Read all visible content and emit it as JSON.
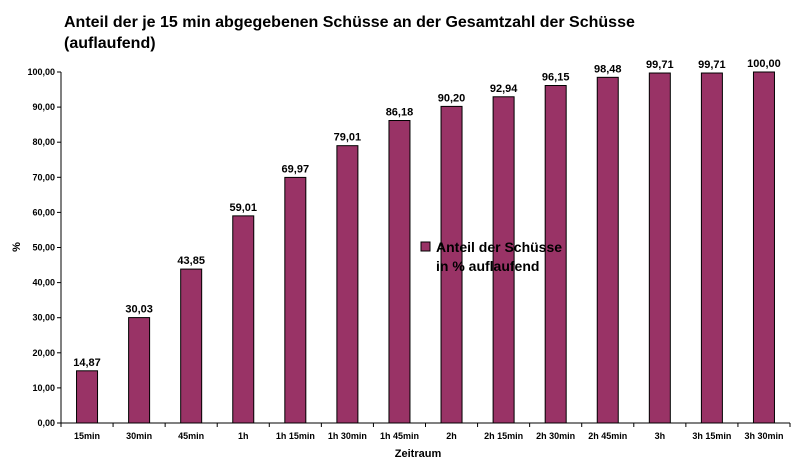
{
  "chart_data": {
    "type": "bar",
    "title_lines": [
      "Anteil der je 15 min abgegebenen Schüsse an der Gesamtzahl der Schüsse",
      "(auflaufend)"
    ],
    "xlabel": "Zeitraum",
    "ylabel": "%",
    "ylim": [
      0,
      100
    ],
    "yticks": [
      "0,00",
      "10,00",
      "20,00",
      "30,00",
      "40,00",
      "50,00",
      "60,00",
      "70,00",
      "80,00",
      "90,00",
      "100,00"
    ],
    "grid": false,
    "legend_position": "center-right",
    "categories": [
      "15min",
      "30min",
      "45min",
      "1h",
      "1h 15min",
      "1h 30min",
      "1h 45min",
      "2h",
      "2h 15min",
      "2h 30min",
      "2h 45min",
      "3h",
      "3h 15min",
      "3h 30min"
    ],
    "series": [
      {
        "name_lines": [
          "Anteil der Schüsse",
          "in % auflaufend"
        ],
        "color": "#993366",
        "values": [
          14.87,
          30.03,
          43.85,
          59.01,
          69.97,
          79.01,
          86.18,
          90.2,
          92.94,
          96.15,
          98.48,
          99.71,
          99.71,
          100.0
        ],
        "labels": [
          "14,87",
          "30,03",
          "43,85",
          "59,01",
          "69,97",
          "79,01",
          "86,18",
          "90,20",
          "92,94",
          "96,15",
          "98,48",
          "99,71",
          "99,71",
          "100,00"
        ]
      }
    ]
  }
}
